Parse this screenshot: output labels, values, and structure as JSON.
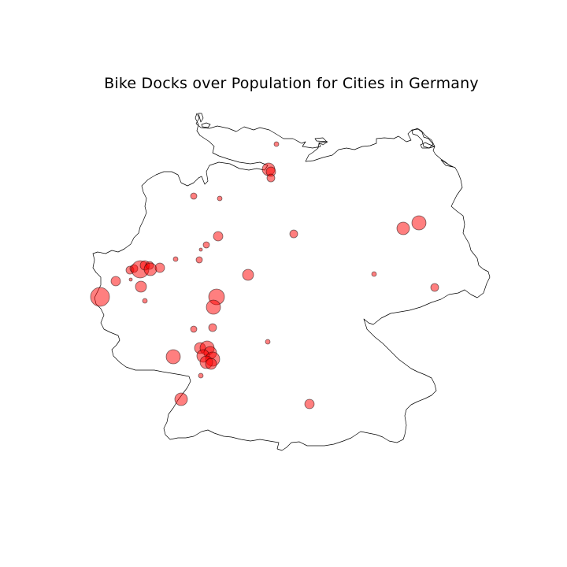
{
  "title": "Bike Docks over Population for Cities in Germany",
  "colors": {
    "marker_fill": "#ff0000",
    "marker_opacity": 0.5,
    "marker_edge": "#000000",
    "border": "#000000"
  },
  "map_data": {
    "type": "bubble-map",
    "region": "Germany",
    "grid": false,
    "axes_visible": false
  }
}
